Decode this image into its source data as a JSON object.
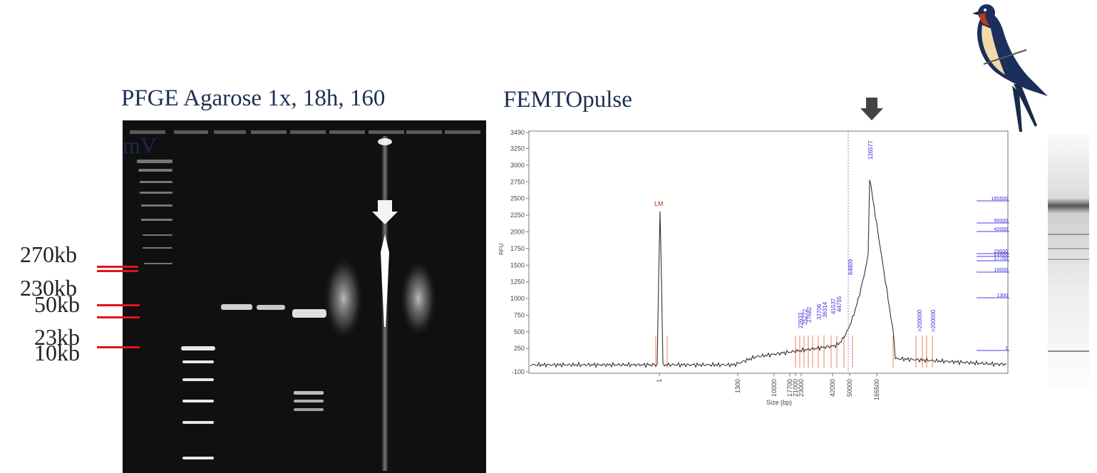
{
  "gel": {
    "title": "PFGE Agarose 1x, 18h, 160",
    "overlay_label": "mV",
    "size_markers": [
      "270kb",
      "230kb",
      "50kb",
      "23kb",
      "10kb"
    ],
    "marker_line_color": "#e0141b"
  },
  "femto": {
    "title": "FEMTOpulse",
    "peak_label": "126577",
    "lm_label": "LM",
    "y_axis_label": "RFU",
    "x_axis_label": "Size (bp)",
    "y_ticks": [
      "3490",
      "3250",
      "3000",
      "2750",
      "2500",
      "2250",
      "2000",
      "1750",
      "1500",
      "1250",
      "1000",
      "750",
      "500",
      "250",
      "-100"
    ],
    "x_ticks": [
      "1",
      "1300",
      "10000",
      "17700",
      "21000",
      "23000",
      "42000",
      "50000",
      "165500"
    ],
    "peak_labels": [
      "22633",
      "25272",
      "27682",
      "32706",
      "36314",
      "41537",
      "44755",
      "64809",
      ">200000",
      ">200000"
    ],
    "ladder_labels": [
      "165500",
      "50000",
      "42000",
      "23000",
      "21000",
      "17700",
      "10000",
      "1300",
      "1"
    ],
    "trace_color": "#333333",
    "peak_label_color": "#3c2fd6",
    "marker_color": "#f08050"
  }
}
